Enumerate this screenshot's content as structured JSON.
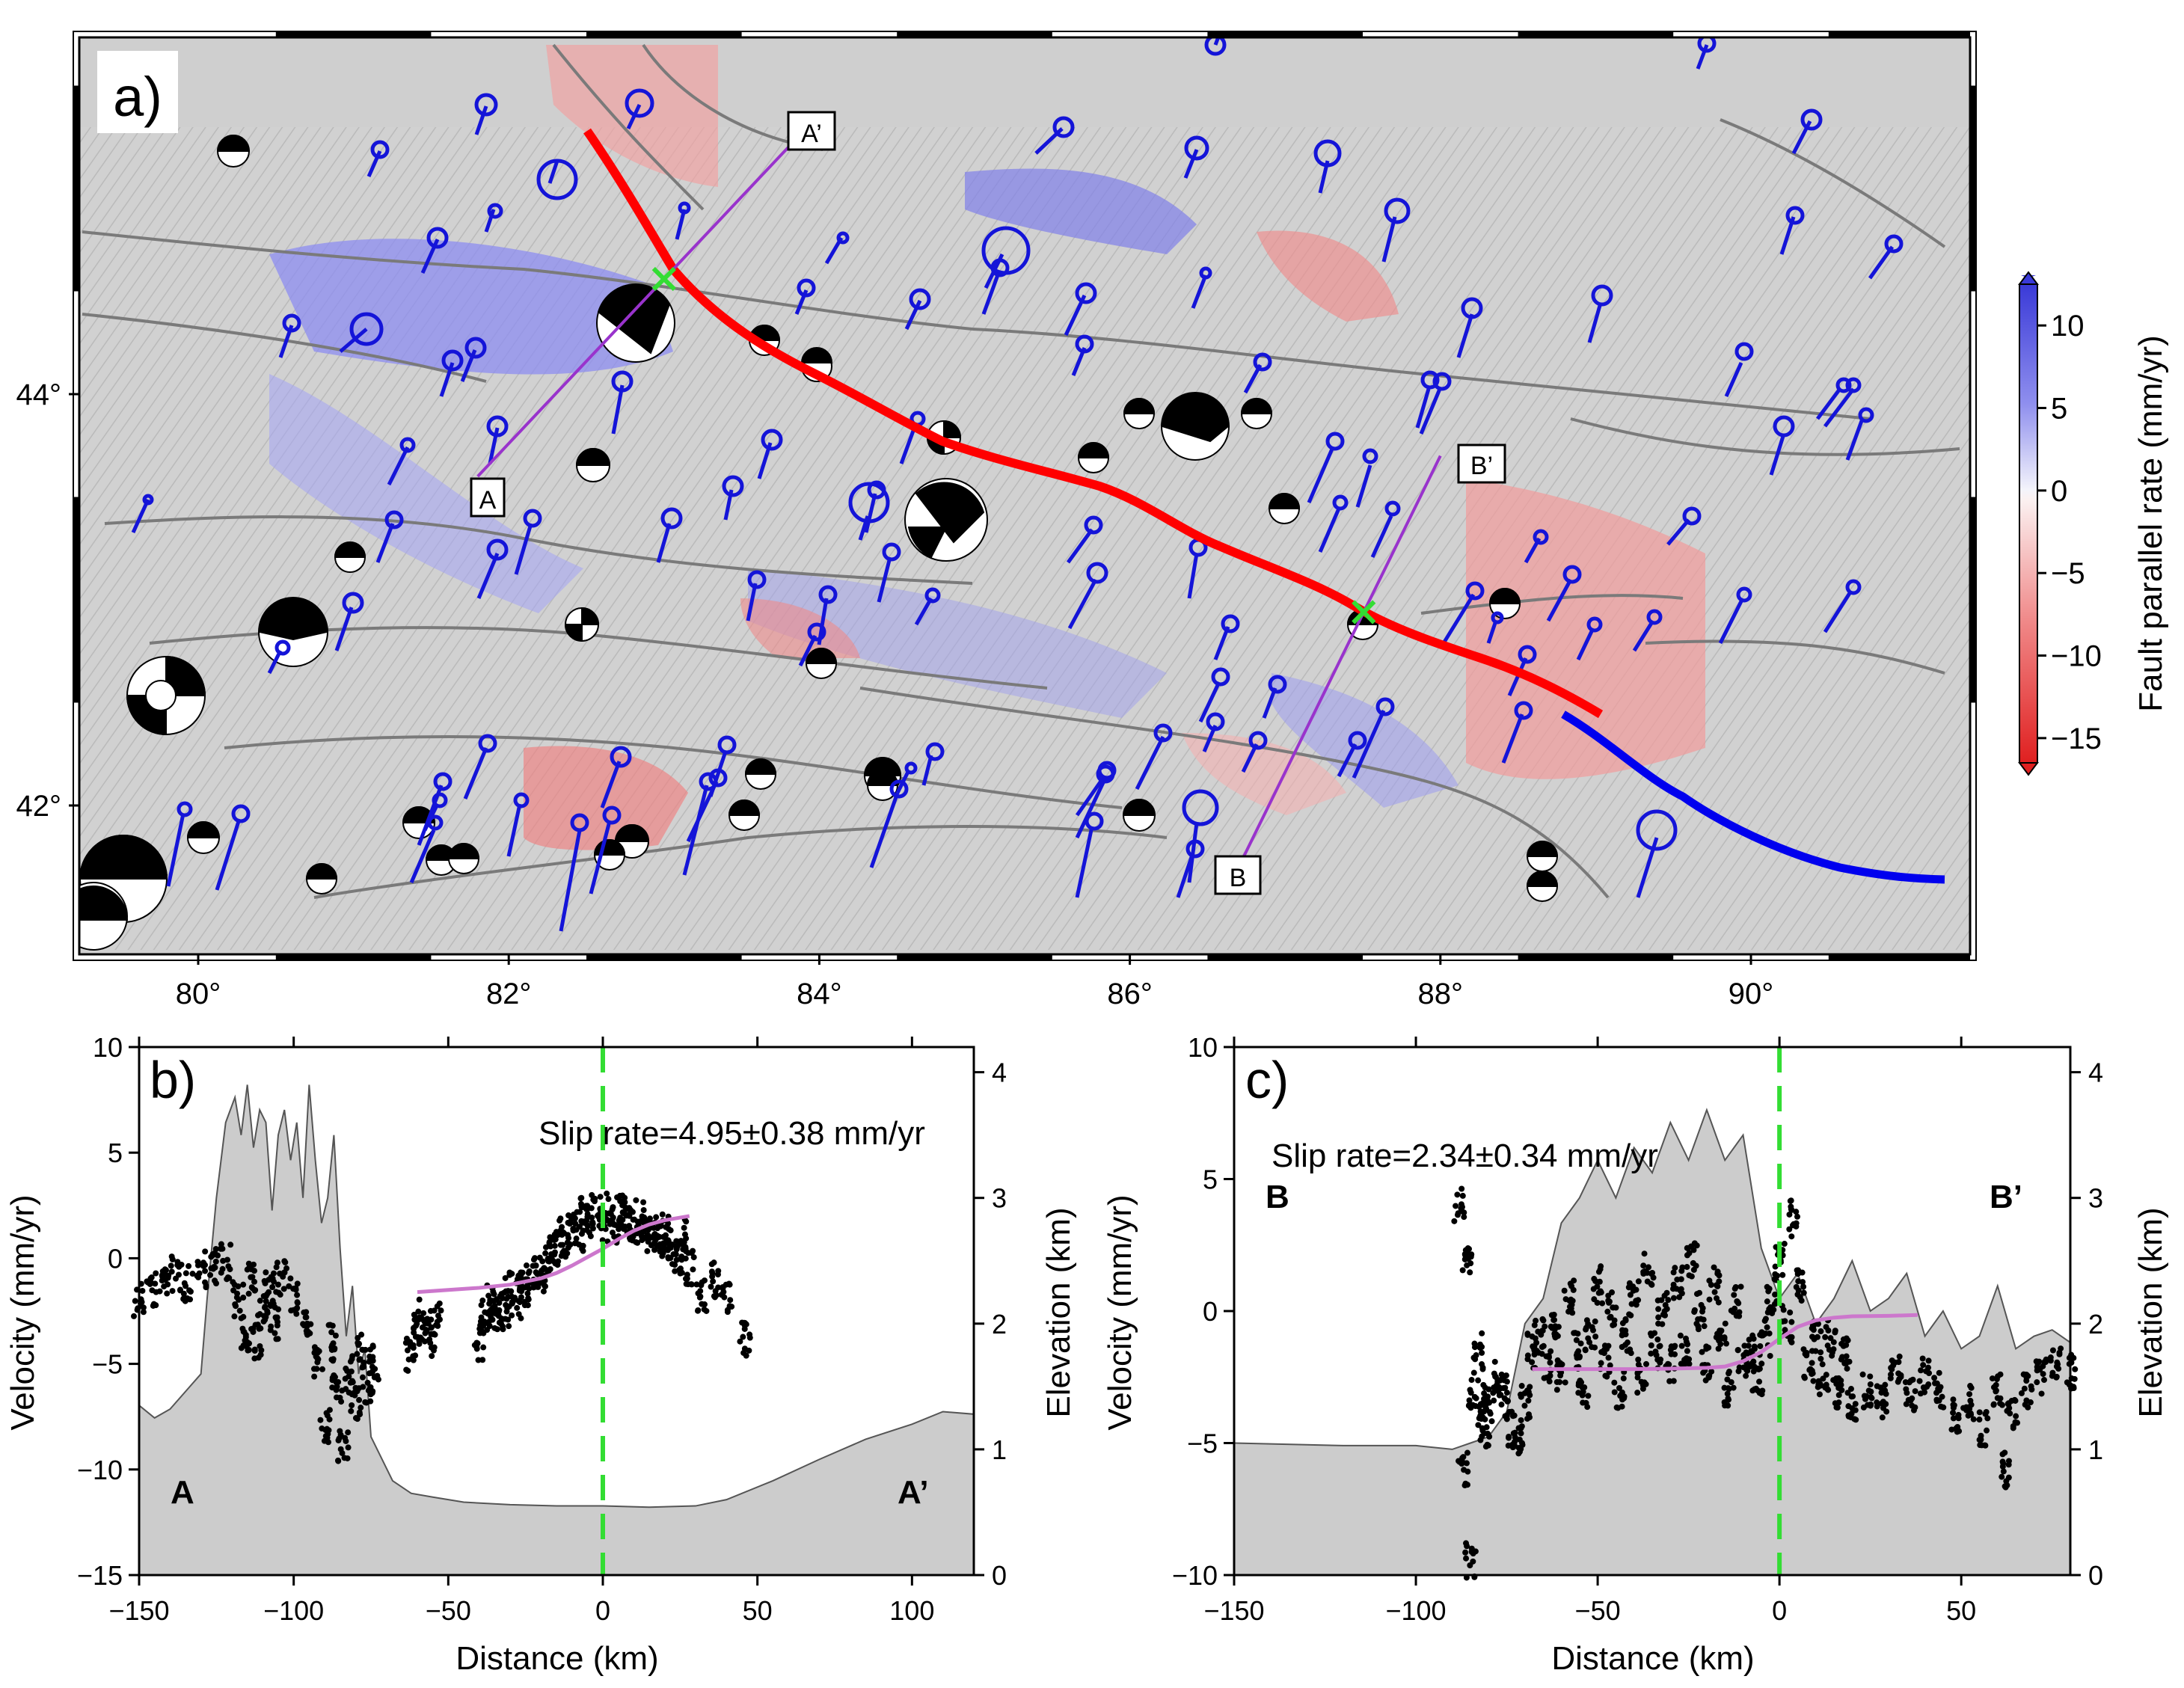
{
  "panel_a": {
    "panel_label": "a)",
    "x_ticks": [
      {
        "v": 80,
        "label": "80°"
      },
      {
        "v": 82,
        "label": "82°"
      },
      {
        "v": 84,
        "label": "84°"
      },
      {
        "v": 86,
        "label": "86°"
      },
      {
        "v": 88,
        "label": "88°"
      },
      {
        "v": 90,
        "label": "90°"
      }
    ],
    "y_ticks": [
      {
        "v": 44,
        "label": "44°"
      },
      {
        "v": 42,
        "label": "42°"
      }
    ],
    "profile_a": {
      "start": "A",
      "end": "A’",
      "from": [
        81.8,
        43.6
      ],
      "to": [
        83.8,
        45.2
      ]
    },
    "profile_b": {
      "start": "B",
      "end": "B’",
      "from": [
        86.7,
        41.7
      ],
      "to": [
        88.0,
        43.7
      ]
    },
    "colorbar": {
      "label": "Fault parallel rate (mm/yr)",
      "ticks": [
        {
          "v": 10,
          "label": "10"
        },
        {
          "v": 5,
          "label": "5"
        },
        {
          "v": 0,
          "label": "0"
        },
        {
          "v": -5,
          "label": "−5"
        },
        {
          "v": -10,
          "label": "−10"
        },
        {
          "v": -15,
          "label": "−15"
        }
      ],
      "min": -16.5,
      "max": 12.5,
      "pos_color": "#4040e0",
      "neg_color": "#e03030"
    }
  },
  "chart_data": [
    {
      "type": "scatter",
      "panel_label": "b)",
      "slip_rate_text": "Slip rate=4.95±0.38 mm/yr",
      "profile_start": "A",
      "profile_end": "A’",
      "xlabel": "Distance (km)",
      "ylabel": "Velocity (mm/yr)",
      "y2label": "Elevation (km)",
      "xlim": [
        -150,
        120
      ],
      "ylim": [
        -15,
        10
      ],
      "y2lim": [
        0,
        4.2
      ],
      "x_ticks": [
        {
          "v": -150,
          "label": "−150"
        },
        {
          "v": -100,
          "label": "−100"
        },
        {
          "v": -50,
          "label": "−50"
        },
        {
          "v": 0,
          "label": "0"
        },
        {
          "v": 50,
          "label": "50"
        },
        {
          "v": 100,
          "label": "100"
        }
      ],
      "y_ticks": [
        {
          "v": -15,
          "label": "−15"
        },
        {
          "v": -10,
          "label": "−10"
        },
        {
          "v": -5,
          "label": "−5"
        },
        {
          "v": 0,
          "label": "0"
        },
        {
          "v": 5,
          "label": "5"
        },
        {
          "v": 10,
          "label": "10"
        }
      ],
      "y2_ticks": [
        {
          "v": 0,
          "label": "0"
        },
        {
          "v": 1,
          "label": "1"
        },
        {
          "v": 2,
          "label": "2"
        },
        {
          "v": 3,
          "label": "3"
        },
        {
          "v": 4,
          "label": "4"
        }
      ],
      "elevation_km": {
        "x": [
          -150,
          -145,
          -140,
          -130,
          -128,
          -125,
          -122,
          -119,
          -117,
          -115,
          -113,
          -111,
          -109,
          -107,
          -105,
          -103,
          -101,
          -99,
          -97,
          -95,
          -93,
          -91,
          -89,
          -87,
          -85,
          -83,
          -81,
          -79,
          -77,
          -75,
          -72,
          -68,
          -62,
          -55,
          -45,
          -30,
          -15,
          0,
          15,
          30,
          40,
          55,
          70,
          85,
          100,
          110,
          120
        ],
        "y": [
          1.35,
          1.25,
          1.32,
          1.6,
          2.2,
          3.0,
          3.6,
          3.8,
          3.5,
          3.9,
          3.4,
          3.7,
          3.6,
          2.9,
          3.5,
          3.7,
          3.3,
          3.6,
          3.0,
          3.9,
          3.3,
          2.8,
          3.0,
          3.5,
          2.6,
          1.9,
          2.3,
          1.6,
          1.8,
          1.1,
          0.95,
          0.75,
          0.65,
          0.62,
          0.58,
          0.56,
          0.55,
          0.55,
          0.54,
          0.55,
          0.6,
          0.75,
          0.92,
          1.08,
          1.2,
          1.3,
          1.28
        ]
      },
      "velocity_points": {
        "x": [
          -150,
          -146,
          -142,
          -138,
          -134,
          -130,
          -126,
          -122,
          -118,
          -116,
          -114,
          -112,
          -110,
          -108,
          -106,
          -104,
          -100,
          -96,
          -92,
          -90,
          -88,
          -86,
          -84,
          -82,
          -80,
          -78,
          -76,
          -74,
          -62,
          -60,
          -58,
          -56,
          -54,
          -40,
          -38,
          -36,
          -34,
          -32,
          -30,
          -28,
          -26,
          -24,
          -22,
          -20,
          -18,
          -16,
          -14,
          -12,
          -10,
          -8,
          -6,
          -4,
          -2,
          0,
          2,
          4,
          6,
          8,
          10,
          12,
          14,
          16,
          18,
          20,
          22,
          24,
          26,
          28,
          32,
          36,
          40,
          46
        ],
        "y": [
          -2.0,
          -1.5,
          -1.0,
          -0.8,
          -1.2,
          -0.5,
          -0.4,
          -0.2,
          -2.0,
          -3.5,
          -1.0,
          -4.0,
          -2.5,
          -1.5,
          -3.0,
          -1.0,
          -1.8,
          -3.0,
          -5.0,
          -8.0,
          -4.0,
          -6.0,
          -9.0,
          -5.5,
          -7.0,
          -4.5,
          -6.0,
          -5.0,
          -4.5,
          -3.5,
          -2.8,
          -3.8,
          -3.0,
          -4.0,
          -2.8,
          -2.0,
          -2.5,
          -2.5,
          -1.5,
          -2.0,
          -1.0,
          -1.5,
          -0.5,
          -1.0,
          0.0,
          0.5,
          1.0,
          0.8,
          1.5,
          1.2,
          2.0,
          1.8,
          2.3,
          1.5,
          2.2,
          1.6,
          2.4,
          1.8,
          1.5,
          2.0,
          1.0,
          1.6,
          0.8,
          1.2,
          0.5,
          0.0,
          1.0,
          -0.5,
          -1.8,
          -1.0,
          -2.0,
          -3.8
        ]
      },
      "model_fit": {
        "x": [
          -60,
          -50,
          -40,
          -30,
          -20,
          -15,
          -10,
          -5,
          0,
          5,
          10,
          15,
          20,
          28
        ],
        "y": [
          -1.6,
          -1.5,
          -1.4,
          -1.25,
          -0.95,
          -0.7,
          -0.35,
          0.05,
          0.45,
          0.9,
          1.3,
          1.6,
          1.8,
          2.0
        ]
      },
      "fault_x": 0
    },
    {
      "type": "scatter",
      "panel_label": "c)",
      "slip_rate_text": "Slip rate=2.34±0.34 mm/yr",
      "profile_start": "B",
      "profile_end": "B’",
      "xlabel": "Distance (km)",
      "ylabel": "Velocity (mm/yr)",
      "y2label": "Elevation (km)",
      "xlim": [
        -150,
        80
      ],
      "ylim": [
        -10,
        10
      ],
      "y2lim": [
        0,
        4.2
      ],
      "x_ticks": [
        {
          "v": -150,
          "label": "−150"
        },
        {
          "v": -100,
          "label": "−100"
        },
        {
          "v": -50,
          "label": "−50"
        },
        {
          "v": 0,
          "label": "0"
        },
        {
          "v": 50,
          "label": "50"
        }
      ],
      "y_ticks": [
        {
          "v": -10,
          "label": "−10"
        },
        {
          "v": -5,
          "label": "−5"
        },
        {
          "v": 0,
          "label": "0"
        },
        {
          "v": 5,
          "label": "5"
        },
        {
          "v": 10,
          "label": "10"
        }
      ],
      "y2_ticks": [
        {
          "v": 0,
          "label": "0"
        },
        {
          "v": 1,
          "label": "1"
        },
        {
          "v": 2,
          "label": "2"
        },
        {
          "v": 3,
          "label": "3"
        },
        {
          "v": 4,
          "label": "4"
        }
      ],
      "elevation_km": {
        "x": [
          -150,
          -120,
          -100,
          -90,
          -85,
          -80,
          -75,
          -70,
          -65,
          -60,
          -55,
          -50,
          -45,
          -40,
          -35,
          -30,
          -25,
          -20,
          -15,
          -10,
          -5,
          0,
          5,
          10,
          15,
          20,
          25,
          30,
          35,
          40,
          45,
          50,
          55,
          60,
          65,
          70,
          75,
          80
        ],
        "y": [
          1.05,
          1.03,
          1.03,
          1.0,
          1.05,
          1.1,
          1.3,
          2.0,
          2.2,
          2.8,
          3.0,
          3.3,
          3.0,
          3.4,
          3.2,
          3.6,
          3.3,
          3.7,
          3.3,
          3.5,
          2.6,
          2.2,
          2.4,
          2.0,
          2.2,
          2.5,
          2.1,
          2.2,
          2.4,
          1.9,
          2.1,
          1.8,
          1.9,
          2.3,
          1.8,
          1.9,
          1.95,
          1.85
        ]
      },
      "velocity_points": {
        "x": [
          -88,
          -87,
          -86,
          -85,
          -84,
          -83,
          -82,
          -81,
          -80,
          -78,
          -76,
          -74,
          -72,
          -70,
          -68,
          -66,
          -64,
          -62,
          -60,
          -58,
          -56,
          -54,
          -52,
          -50,
          -48,
          -46,
          -44,
          -42,
          -40,
          -38,
          -36,
          -34,
          -32,
          -30,
          -28,
          -26,
          -24,
          -22,
          -20,
          -18,
          -16,
          -14,
          -12,
          -10,
          -8,
          -6,
          -4,
          -2,
          0,
          2,
          4,
          6,
          8,
          10,
          12,
          14,
          16,
          18,
          20,
          24,
          28,
          32,
          36,
          40,
          44,
          48,
          52,
          56,
          60,
          62,
          64,
          68,
          72,
          76,
          80
        ],
        "y": [
          4.0,
          -6.0,
          2.0,
          -9.5,
          -3.0,
          -1.5,
          -4.0,
          -4.5,
          -3.5,
          -2.5,
          -3.0,
          -4.5,
          -5.0,
          -3.5,
          -1.5,
          -1.0,
          -2.0,
          -0.5,
          -2.5,
          0.5,
          -1.5,
          -3.0,
          -1.0,
          1.0,
          -2.0,
          0.0,
          -3.0,
          -1.0,
          0.5,
          -2.5,
          1.5,
          -1.5,
          0.0,
          -2.0,
          1.0,
          -1.5,
          2.0,
          0.0,
          -2.0,
          1.0,
          -1.0,
          -3.0,
          0.5,
          -2.0,
          -1.5,
          -2.5,
          -1.0,
          0.5,
          2.0,
          -0.5,
          3.5,
          1.0,
          -2.0,
          -1.0,
          -2.5,
          -1.0,
          -3.0,
          -1.5,
          -3.5,
          -3.0,
          -3.5,
          -2.0,
          -3.2,
          -2.5,
          -3.0,
          -4.0,
          -3.5,
          -4.5,
          -3.0,
          -6.0,
          -4.0,
          -3.0,
          -2.5,
          -2.0,
          -2.3
        ]
      },
      "model_fit": {
        "x": [
          -68,
          -60,
          -50,
          -40,
          -30,
          -20,
          -15,
          -10,
          -5,
          0,
          5,
          10,
          15,
          20,
          30,
          38
        ],
        "y": [
          -2.2,
          -2.2,
          -2.2,
          -2.2,
          -2.18,
          -2.15,
          -2.1,
          -1.9,
          -1.55,
          -1.05,
          -0.6,
          -0.35,
          -0.25,
          -0.2,
          -0.18,
          -0.15
        ]
      },
      "fault_x": 0
    }
  ]
}
